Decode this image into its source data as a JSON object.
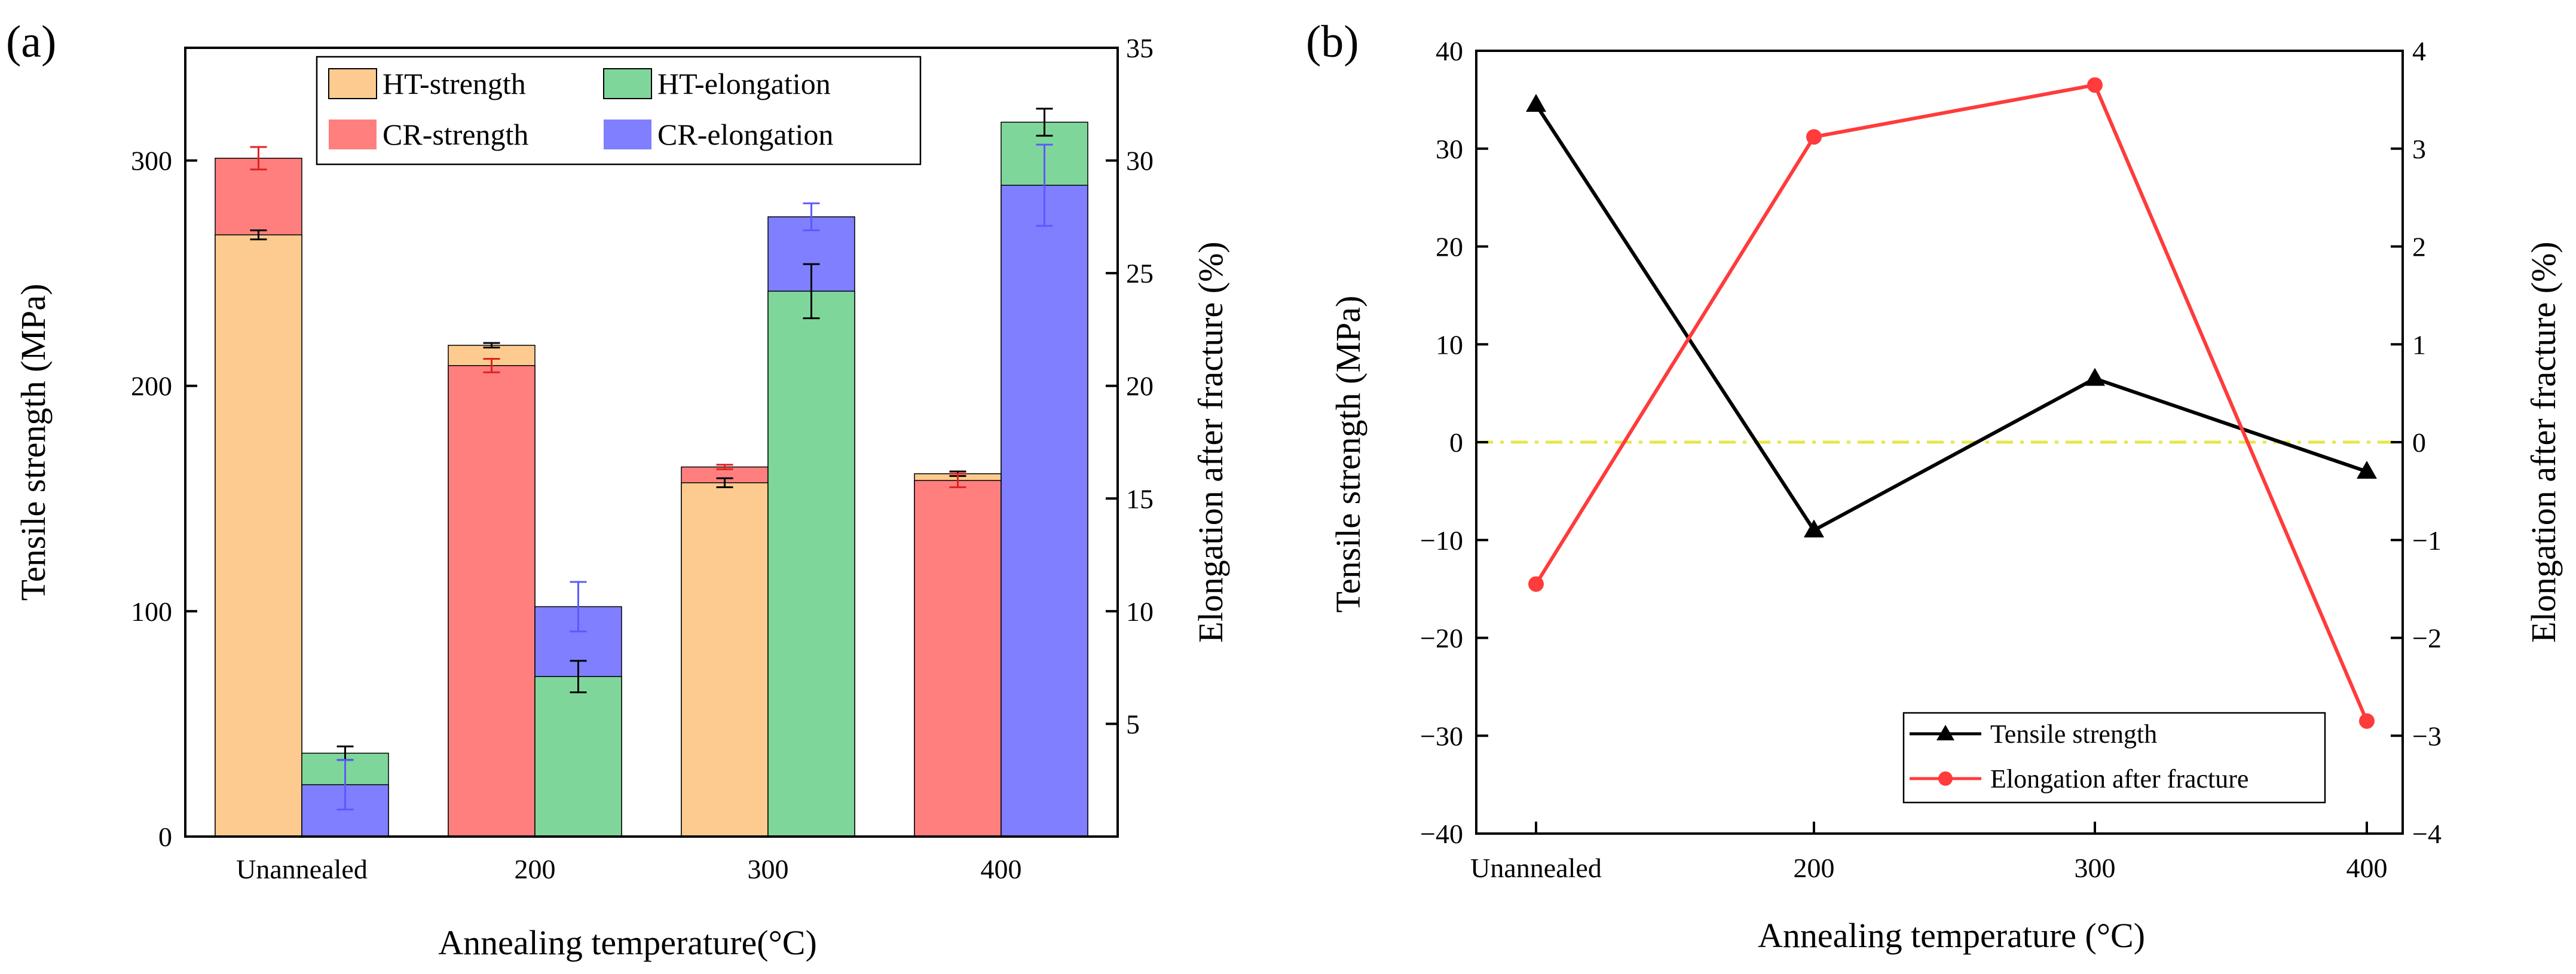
{
  "chart_data": [
    {
      "panel_label": "(a)",
      "type": "bar",
      "categories": [
        "Unannealed",
        "200",
        "300",
        "400"
      ],
      "xlabel": "Annealing temperature(°C)",
      "ylabel": "Tensile strength (MPa)",
      "y2label": "Elongation after fracture (%)",
      "ylim": [
        0,
        350
      ],
      "y2lim": [
        0,
        35
      ],
      "yticks": [
        "0",
        "100",
        "200",
        "300"
      ],
      "y2ticks": [
        "5",
        "10",
        "15",
        "20",
        "25",
        "30",
        "35"
      ],
      "legend_position": "top-center",
      "series": [
        {
          "name": "HT-strength",
          "axis": "left",
          "color": "#fdcb8f",
          "values": [
            267,
            218,
            157,
            161
          ],
          "errors": [
            2,
            1,
            2,
            1
          ]
        },
        {
          "name": "CR-strength",
          "axis": "left",
          "color": "#ff7f7f",
          "values": [
            301,
            209,
            164,
            158
          ],
          "errors": [
            5,
            3,
            1,
            3
          ]
        },
        {
          "name": "HT-elongation",
          "axis": "right",
          "color": "#7fd69a",
          "values": [
            3.7,
            7.1,
            24.2,
            31.7
          ],
          "errors": [
            0.3,
            0.7,
            1.2,
            0.6
          ]
        },
        {
          "name": "CR-elongation",
          "axis": "right",
          "color": "#7f7fff",
          "values": [
            2.3,
            10.2,
            27.5,
            28.9
          ],
          "errors": [
            1.1,
            1.1,
            0.6,
            1.8
          ]
        }
      ]
    },
    {
      "panel_label": "(b)",
      "type": "line",
      "categories": [
        "Unannealed",
        "200",
        "300",
        "400"
      ],
      "xlabel": "Annealing temperature (°C)",
      "ylabel": "Tensile strength (MPa)",
      "y2label": "Elongation after fracture (%)",
      "ylim": [
        -40,
        40
      ],
      "y2lim": [
        -4,
        4
      ],
      "yticks": [
        "−40",
        "−30",
        "−20",
        "−10",
        "0",
        "10",
        "20",
        "30",
        "40"
      ],
      "y2ticks": [
        "−4",
        "−3",
        "−2",
        "−1",
        "0",
        "1",
        "2",
        "3",
        "4"
      ],
      "reference_line": {
        "y": 0,
        "color": "#e6e64c",
        "style": "dash-dot"
      },
      "legend_position": "bottom-right",
      "series": [
        {
          "name": "Tensile strength",
          "axis": "left",
          "color": "#000000",
          "marker": "triangle",
          "values": [
            34.5,
            -9,
            6.5,
            -3
          ]
        },
        {
          "name": "Elongation after fracture",
          "axis": "right",
          "color": "#ff3b3b",
          "marker": "circle",
          "values": [
            -1.45,
            3.12,
            3.65,
            -2.85
          ]
        }
      ]
    }
  ]
}
